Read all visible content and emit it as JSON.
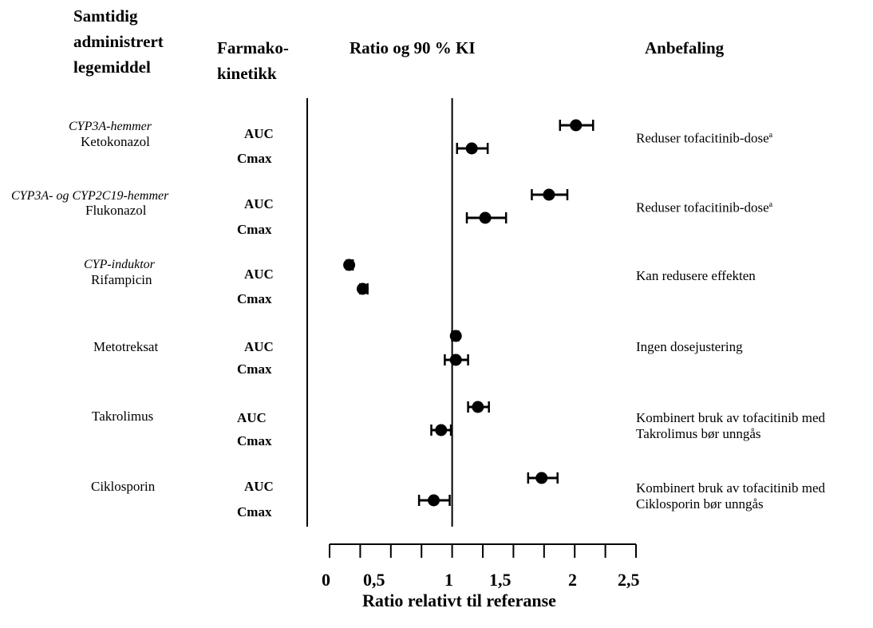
{
  "headers": {
    "drug": [
      "Samtidig",
      "administrert",
      "legemiddel"
    ],
    "pk": [
      "Farmako-",
      "kinetikk"
    ],
    "ratio": "Ratio og 90 % KI",
    "recommendation": "Anbefaling"
  },
  "rows": [
    {
      "category": "CYP3A-hemmer",
      "drug": "Ketokonazol",
      "pk1": "AUC",
      "pk2": "Cmax",
      "rec": [
        "Reduser tofacitinib-dose",
        ""
      ],
      "rec_sup": "a"
    },
    {
      "category": "CYP3A- og CYP2C19-hemmer",
      "drug": "Flukonazol",
      "pk1": "AUC",
      "pk2": "Cmax",
      "rec": [
        "Reduser tofacitinib-dose",
        ""
      ],
      "rec_sup": "a"
    },
    {
      "category": "CYP-induktor",
      "drug": "Rifampicin",
      "pk1": "AUC",
      "pk2": "Cmax",
      "rec": [
        "Kan redusere effekten",
        ""
      ],
      "rec_sup": ""
    },
    {
      "category": "",
      "drug": "Metotreksat",
      "pk1": "AUC",
      "pk2": "Cmax",
      "rec": [
        "Ingen dosejustering",
        ""
      ],
      "rec_sup": ""
    },
    {
      "category": "",
      "drug": "Takrolimus",
      "pk1": "AUC",
      "pk2": "Cmax",
      "rec": [
        "Kombinert bruk av tofacitinib med",
        "Takrolimus bør unngås"
      ],
      "rec_sup": ""
    },
    {
      "category": "",
      "drug": "Ciklosporin",
      "pk1": "AUC",
      "pk2": "Cmax",
      "rec": [
        "Kombinert bruk av tofacitinib med",
        "Ciklosporin bør unngås"
      ],
      "rec_sup": ""
    }
  ],
  "chart_data": {
    "type": "scatter",
    "title": "Ratio og 90 % KI",
    "xlabel": "Ratio relativt til referanse",
    "xlim": [
      0,
      2.5
    ],
    "xticks": [
      "0",
      "0,5",
      "1",
      "1,5",
      "2",
      "2,5"
    ],
    "reference_line": 1.0,
    "series": [
      {
        "points": [
          {
            "drug": "Ketokonazol",
            "pk": "AUC",
            "value": 2.01,
            "ci": [
              1.88,
              2.15
            ]
          },
          {
            "drug": "Ketokonazol",
            "pk": "Cmax",
            "value": 1.16,
            "ci": [
              1.04,
              1.29
            ]
          },
          {
            "drug": "Flukonazol",
            "pk": "AUC",
            "value": 1.79,
            "ci": [
              1.65,
              1.94
            ]
          },
          {
            "drug": "Flukonazol",
            "pk": "Cmax",
            "value": 1.27,
            "ci": [
              1.12,
              1.44
            ]
          },
          {
            "drug": "Rifampicin",
            "pk": "AUC",
            "value": 0.16,
            "ci": [
              0.14,
              0.19
            ]
          },
          {
            "drug": "Rifampicin",
            "pk": "Cmax",
            "value": 0.27,
            "ci": [
              0.25,
              0.31
            ]
          },
          {
            "drug": "Metotreksat",
            "pk": "AUC",
            "value": 1.03,
            "ci": [
              1.0,
              1.05
            ]
          },
          {
            "drug": "Metotreksat",
            "pk": "Cmax",
            "value": 1.03,
            "ci": [
              0.94,
              1.13
            ]
          },
          {
            "drug": "Takrolimus",
            "pk": "AUC",
            "value": 1.21,
            "ci": [
              1.13,
              1.3
            ]
          },
          {
            "drug": "Takrolimus",
            "pk": "Cmax",
            "value": 0.91,
            "ci": [
              0.83,
              0.99
            ]
          },
          {
            "drug": "Ciklosporin",
            "pk": "AUC",
            "value": 1.73,
            "ci": [
              1.62,
              1.86
            ]
          },
          {
            "drug": "Ciklosporin",
            "pk": "Cmax",
            "value": 0.85,
            "ci": [
              0.73,
              0.98
            ]
          }
        ]
      }
    ]
  }
}
